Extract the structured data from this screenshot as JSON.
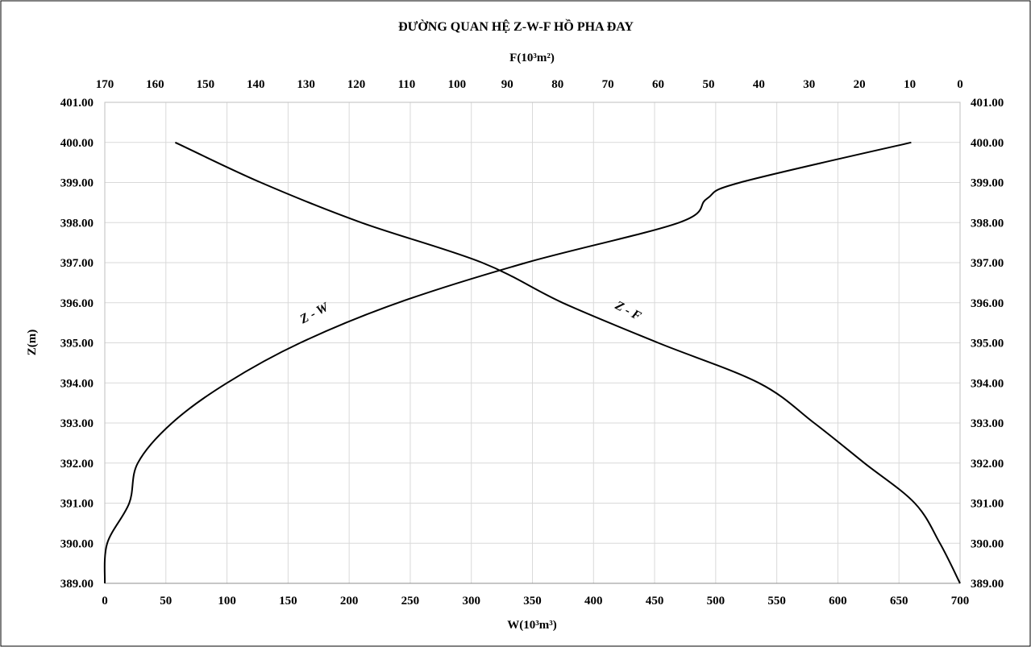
{
  "chart_data": {
    "type": "line",
    "title": "ĐƯỜNG QUAN HỆ Z-W-F HỒ PHA ĐAY",
    "xlabel_bottom": "W(10³m³)",
    "xlabel_top": "F(10³m²)",
    "ylabel": "Z(m)",
    "x_bottom_range": [
      0,
      700
    ],
    "x_top_range": [
      170,
      0
    ],
    "x_top_reversed": true,
    "ylim": [
      389,
      401
    ],
    "grid": true,
    "x_bottom_ticks": [
      "0",
      "50",
      "100",
      "150",
      "200",
      "250",
      "300",
      "350",
      "400",
      "450",
      "500",
      "550",
      "600",
      "650",
      "700"
    ],
    "x_top_ticks": [
      "170",
      "160",
      "150",
      "140",
      "130",
      "120",
      "110",
      "100",
      "90",
      "80",
      "70",
      "60",
      "50",
      "40",
      "30",
      "20",
      "10",
      "0"
    ],
    "y_ticks": [
      "389.00",
      "390.00",
      "391.00",
      "392.00",
      "393.00",
      "394.00",
      "395.00",
      "396.00",
      "397.00",
      "398.00",
      "399.00",
      "400.00",
      "401.00"
    ],
    "series": [
      {
        "name": "Z - W",
        "axis": "bottom",
        "points": [
          {
            "z": 389.0,
            "v": 0
          },
          {
            "z": 390.0,
            "v": 2
          },
          {
            "z": 391.0,
            "v": 20
          },
          {
            "z": 392.0,
            "v": 27
          },
          {
            "z": 393.0,
            "v": 55
          },
          {
            "z": 394.0,
            "v": 100
          },
          {
            "z": 395.0,
            "v": 160
          },
          {
            "z": 396.0,
            "v": 240
          },
          {
            "z": 397.0,
            "v": 345
          },
          {
            "z": 398.0,
            "v": 470
          },
          {
            "z": 398.6,
            "v": 493
          },
          {
            "z": 399.0,
            "v": 520
          },
          {
            "z": 400.0,
            "v": 660
          }
        ]
      },
      {
        "name": "Z - F",
        "axis": "top",
        "points": [
          {
            "z": 389.0,
            "v": 0
          },
          {
            "z": 390.0,
            "v": 4
          },
          {
            "z": 391.0,
            "v": 9
          },
          {
            "z": 392.0,
            "v": 19
          },
          {
            "z": 393.0,
            "v": 29
          },
          {
            "z": 394.0,
            "v": 40
          },
          {
            "z": 395.0,
            "v": 60
          },
          {
            "z": 396.0,
            "v": 79
          },
          {
            "z": 397.0,
            "v": 95
          },
          {
            "z": 398.0,
            "v": 119
          },
          {
            "z": 399.0,
            "v": 139
          },
          {
            "z": 400.0,
            "v": 156
          }
        ]
      }
    ]
  }
}
